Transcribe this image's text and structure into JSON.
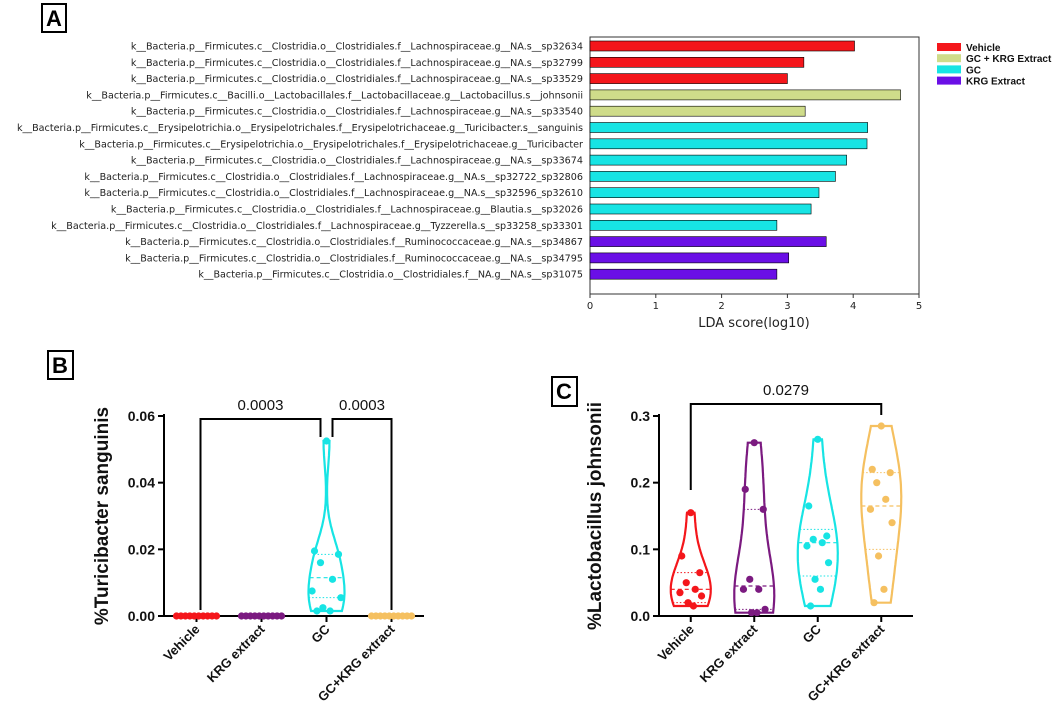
{
  "colors": {
    "vehicle": "#f4161b",
    "gc_krg": "#cfdc8a",
    "gc": "#17e4e4",
    "krg": "#6a0fe6",
    "krg_violin": "#7b1a80",
    "gckrg_violin": "#f5c060"
  },
  "chart_data": [
    {
      "panel": "A",
      "type": "bar",
      "orientation": "horizontal",
      "xlabel": "LDA score(log10)",
      "xlim": [
        0,
        5
      ],
      "xticks": [
        "0",
        "1",
        "2",
        "3",
        "4",
        "5"
      ],
      "legend": [
        {
          "label": "Vehicle",
          "group": "vehicle"
        },
        {
          "label": "GC + KRG Extract",
          "group": "gc_krg"
        },
        {
          "label": "GC",
          "group": "gc"
        },
        {
          "label": "KRG Extract",
          "group": "krg"
        }
      ],
      "rows": [
        {
          "label": "k__Bacteria.p__Firmicutes.c__Clostridia.o__Clostridiales.f__Lachnospiraceae.g__NA.s__sp32634",
          "value": 4.02,
          "group": "vehicle"
        },
        {
          "label": "k__Bacteria.p__Firmicutes.c__Clostridia.o__Clostridiales.f__Lachnospiraceae.g__NA.s__sp32799",
          "value": 3.25,
          "group": "vehicle"
        },
        {
          "label": "k__Bacteria.p__Firmicutes.c__Clostridia.o__Clostridiales.f__Lachnospiraceae.g__NA.s__sp33529",
          "value": 3.0,
          "group": "vehicle"
        },
        {
          "label": "k__Bacteria.p__Firmicutes.c__Bacilli.o__Lactobacillales.f__Lactobacillaceae.g__Lactobacillus.s__johnsonii",
          "value": 4.72,
          "group": "gc_krg"
        },
        {
          "label": "k__Bacteria.p__Firmicutes.c__Clostridia.o__Clostridiales.f__Lachnospiraceae.g__NA.s__sp33540",
          "value": 3.27,
          "group": "gc_krg"
        },
        {
          "label": "k__Bacteria.p__Firmicutes.c__Erysipelotrichia.o__Erysipelotrichales.f__Erysipelotrichaceae.g__Turicibacter.s__sanguinis",
          "value": 4.22,
          "group": "gc"
        },
        {
          "label": "k__Bacteria.p__Firmicutes.c__Erysipelotrichia.o__Erysipelotrichales.f__Erysipelotrichaceae.g__Turicibacter",
          "value": 4.21,
          "group": "gc"
        },
        {
          "label": "k__Bacteria.p__Firmicutes.c__Clostridia.o__Clostridiales.f__Lachnospiraceae.g__NA.s__sp33674",
          "value": 3.9,
          "group": "gc"
        },
        {
          "label": "k__Bacteria.p__Firmicutes.c__Clostridia.o__Clostridiales.f__Lachnospiraceae.g__NA.s__sp32722_sp32806",
          "value": 3.73,
          "group": "gc"
        },
        {
          "label": "k__Bacteria.p__Firmicutes.c__Clostridia.o__Clostridiales.f__Lachnospiraceae.g__NA.s__sp32596_sp32610",
          "value": 3.48,
          "group": "gc"
        },
        {
          "label": "k__Bacteria.p__Firmicutes.c__Clostridia.o__Clostridiales.f__Lachnospiraceae.g__Blautia.s__sp32026",
          "value": 3.36,
          "group": "gc"
        },
        {
          "label": "k__Bacteria.p__Firmicutes.c__Clostridia.o__Clostridiales.f__Lachnospiraceae.g__Tyzzerella.s__sp33258_sp33301",
          "value": 2.84,
          "group": "gc"
        },
        {
          "label": "k__Bacteria.p__Firmicutes.c__Clostridia.o__Clostridiales.f__Ruminococcaceae.g__NA.s__sp34867",
          "value": 3.59,
          "group": "krg"
        },
        {
          "label": "k__Bacteria.p__Firmicutes.c__Clostridia.o__Clostridiales.f__Ruminococcaceae.g__NA.s__sp34795",
          "value": 3.02,
          "group": "krg"
        },
        {
          "label": "k__Bacteria.p__Firmicutes.c__Clostridia.o__Clostridiales.f__NA.g__NA.s__sp31075",
          "value": 2.84,
          "group": "krg"
        }
      ]
    },
    {
      "panel": "B",
      "type": "violin",
      "ylabel": "%Turicibacter sanguinis",
      "ylim": [
        0,
        0.06
      ],
      "yticks": [
        "0.00",
        "0.02",
        "0.04",
        "0.06"
      ],
      "categories": [
        "Vehicle",
        "KRG extract",
        "GC",
        "GC+KRG extract"
      ],
      "groups": [
        "vehicle",
        "krg_violin",
        "gc",
        "gckrg_violin"
      ],
      "points": [
        [
          0,
          0,
          0,
          0,
          0,
          0,
          0,
          0,
          0,
          0
        ],
        [
          0,
          0,
          0,
          0,
          0,
          0,
          0,
          0,
          0,
          0
        ],
        [
          0.0525,
          0.0195,
          0.0185,
          0.016,
          0.011,
          0.0075,
          0.0055,
          0.0025,
          0.0015,
          0.0015
        ],
        [
          0,
          0,
          0,
          0,
          0,
          0,
          0,
          0,
          0,
          0
        ]
      ],
      "medians": [
        0,
        0,
        0.0115,
        0
      ],
      "quartiles": [
        [
          0,
          0
        ],
        [
          0,
          0
        ],
        [
          0.0055,
          0.0185
        ],
        [
          0,
          0
        ]
      ],
      "comparisons": [
        {
          "from": 0,
          "to": 2,
          "p": "0.0003"
        },
        {
          "from": 2,
          "to": 3,
          "p": "0.0003"
        }
      ]
    },
    {
      "panel": "C",
      "type": "violin",
      "ylabel": "%Lactobacillus johnsonii",
      "ylim": [
        0,
        0.3
      ],
      "yticks": [
        "0.0",
        "0.1",
        "0.2",
        "0.3"
      ],
      "categories": [
        "Vehicle",
        "KRG extract",
        "GC",
        "GC+KRG extract"
      ],
      "groups": [
        "vehicle",
        "krg_violin",
        "gc",
        "gckrg_violin"
      ],
      "points": [
        [
          0.155,
          0.09,
          0.065,
          0.05,
          0.04,
          0.035,
          0.03,
          0.02,
          0.015
        ],
        [
          0.26,
          0.19,
          0.16,
          0.055,
          0.04,
          0.04,
          0.01,
          0.005,
          0.005
        ],
        [
          0.265,
          0.165,
          0.12,
          0.115,
          0.11,
          0.105,
          0.08,
          0.055,
          0.04,
          0.015
        ],
        [
          0.285,
          0.22,
          0.215,
          0.2,
          0.175,
          0.16,
          0.14,
          0.09,
          0.04,
          0.02
        ]
      ],
      "medians": [
        0.04,
        0.045,
        0.11,
        0.165
      ],
      "quartiles": [
        [
          0.02,
          0.065
        ],
        [
          0.01,
          0.16
        ],
        [
          0.06,
          0.13
        ],
        [
          0.1,
          0.215
        ]
      ],
      "comparisons": [
        {
          "from": 0,
          "to": 3,
          "p": "0.0279"
        }
      ]
    }
  ],
  "panel_labels": [
    "A",
    "B",
    "C"
  ]
}
